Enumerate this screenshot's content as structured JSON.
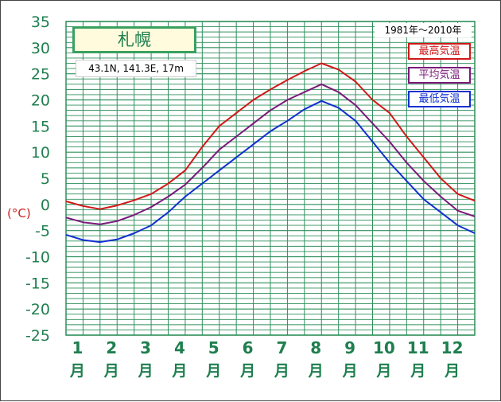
{
  "station": {
    "name": "札幌",
    "coords": "43.1N,  141.3E,  17m",
    "period": "1981年〜2010年"
  },
  "colors": {
    "grid": "#2f8f5b",
    "max": "#d01818",
    "mean": "#7a1a7a",
    "min": "#1030d0"
  },
  "chart_data": {
    "type": "line",
    "title": "札幌",
    "ylabel": "(°C)",
    "ylim": [
      -25,
      35
    ],
    "yticks": [
      35,
      30,
      25,
      20,
      15,
      10,
      5,
      0,
      -5,
      -10,
      -15,
      -20,
      -25
    ],
    "categories": [
      "1",
      "2",
      "3",
      "4",
      "5",
      "6",
      "7",
      "8",
      "9",
      "10",
      "11",
      "12"
    ],
    "category_unit": "月",
    "grid": true,
    "legend_position": "top-right",
    "series": [
      {
        "name": "最高気温",
        "color": "#d01818",
        "x": [
          0.0,
          0.5,
          1.0,
          1.5,
          2.0,
          2.5,
          3.0,
          3.5,
          4.0,
          4.5,
          5.0,
          5.5,
          6.0,
          6.5,
          7.0,
          7.5,
          8.0,
          8.5,
          9.0,
          9.5,
          10.0,
          10.5,
          11.0,
          11.5,
          12.0
        ],
        "values": [
          0.6,
          -0.3,
          -0.9,
          -0.2,
          0.8,
          2.0,
          4.0,
          6.5,
          11.0,
          15.0,
          17.5,
          20.0,
          22.0,
          23.8,
          25.5,
          27.0,
          25.8,
          23.5,
          20.0,
          17.5,
          13.0,
          9.0,
          5.0,
          2.0,
          0.7
        ]
      },
      {
        "name": "平均気温",
        "color": "#7a1a7a",
        "x": [
          0.0,
          0.5,
          1.0,
          1.5,
          2.0,
          2.5,
          3.0,
          3.5,
          4.0,
          4.5,
          5.0,
          5.5,
          6.0,
          6.5,
          7.0,
          7.5,
          8.0,
          8.5,
          9.0,
          9.5,
          10.0,
          10.5,
          11.0,
          11.5,
          12.0
        ],
        "values": [
          -2.5,
          -3.4,
          -3.8,
          -3.2,
          -2.0,
          -0.5,
          1.5,
          3.8,
          7.0,
          10.5,
          13.0,
          15.5,
          18.0,
          20.0,
          21.5,
          23.0,
          21.5,
          19.0,
          15.5,
          12.0,
          8.0,
          4.5,
          1.5,
          -1.2,
          -2.3
        ]
      },
      {
        "name": "最低気温",
        "color": "#1030d0",
        "x": [
          0.0,
          0.5,
          1.0,
          1.5,
          2.0,
          2.5,
          3.0,
          3.5,
          4.0,
          4.5,
          5.0,
          5.5,
          6.0,
          6.5,
          7.0,
          7.5,
          8.0,
          8.5,
          9.0,
          9.5,
          10.0,
          10.5,
          11.0,
          11.5,
          12.0
        ],
        "values": [
          -5.8,
          -6.8,
          -7.2,
          -6.7,
          -5.5,
          -4.0,
          -1.5,
          1.5,
          4.0,
          6.5,
          9.0,
          11.5,
          14.0,
          16.0,
          18.2,
          19.8,
          18.5,
          16.0,
          12.0,
          8.0,
          4.5,
          1.0,
          -1.5,
          -4.0,
          -5.5
        ]
      }
    ]
  }
}
